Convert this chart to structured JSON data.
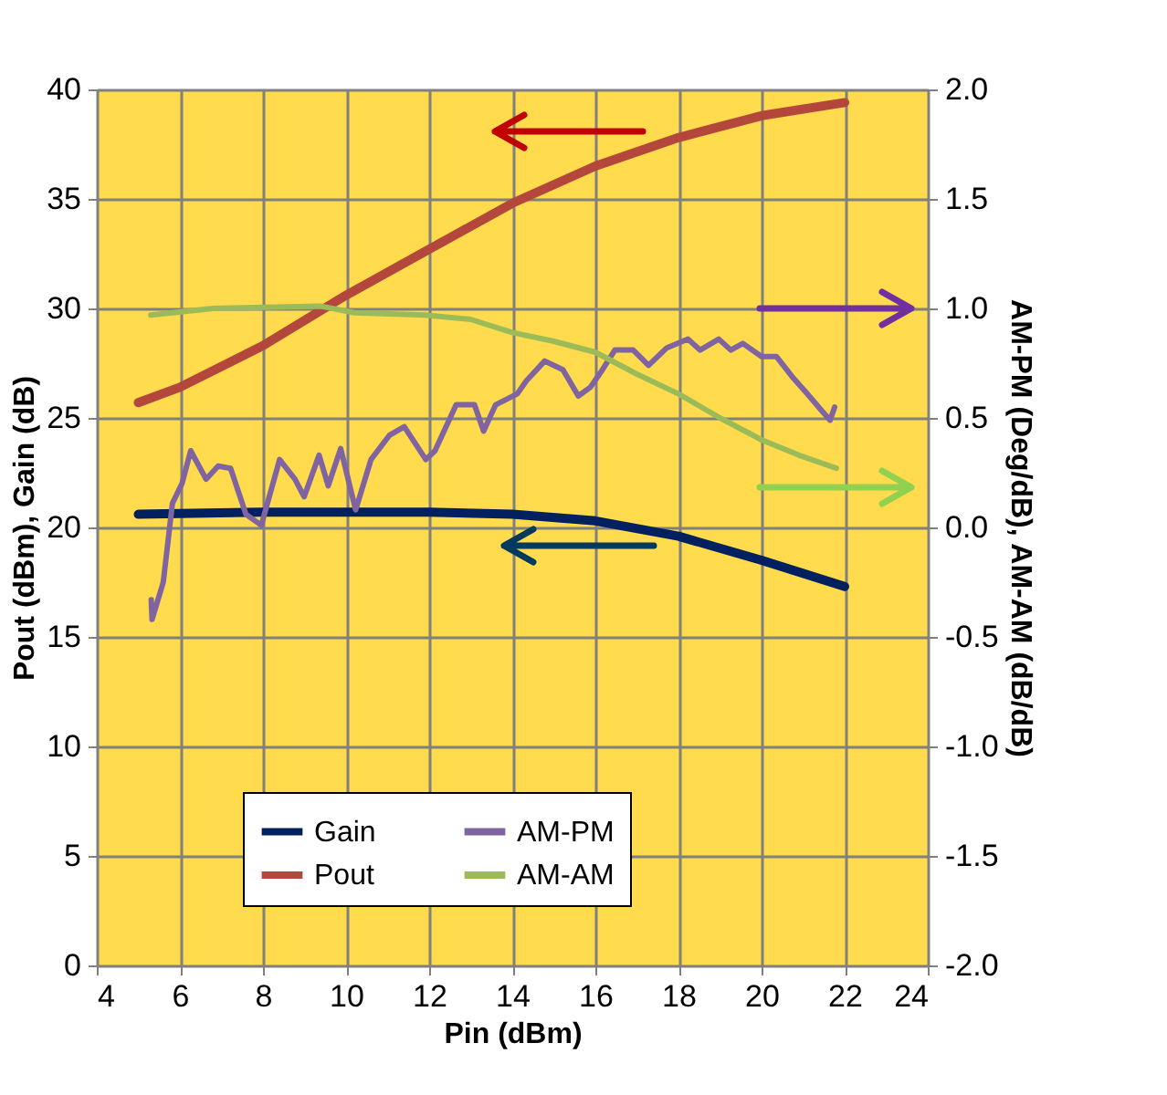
{
  "chart_data": {
    "type": "line",
    "xlabel": "Pin (dBm)",
    "ylabel": "Pout (dBm), Gain (dB)",
    "y2label": "AM-PM (Deg/dB), AM-AM (dB/dB)",
    "xlim": [
      4,
      24
    ],
    "xticks": [
      4,
      6,
      8,
      10,
      12,
      14,
      16,
      18,
      20,
      22,
      24
    ],
    "ylim": [
      0,
      40
    ],
    "yticks": [
      0,
      5,
      10,
      15,
      20,
      25,
      30,
      35,
      40
    ],
    "y2lim": [
      -2,
      2
    ],
    "y2ticks": [
      {
        "value": -2,
        "label": "-2.0"
      },
      {
        "value": -1.5,
        "label": "-1.5"
      },
      {
        "value": -1,
        "label": "-1.0"
      },
      {
        "value": -0.5,
        "label": "-0.5"
      },
      {
        "value": 0,
        "label": "0.0"
      },
      {
        "value": 0.5,
        "label": "0.5"
      },
      {
        "value": 1,
        "label": "1.0"
      },
      {
        "value": 1.5,
        "label": "1.5"
      },
      {
        "value": 2,
        "label": "2.0"
      }
    ],
    "grid": true,
    "legend": "bottom",
    "series": [
      {
        "name": "Gain",
        "color": "#002060",
        "x": [
          5,
          8,
          10,
          12,
          14,
          16,
          18,
          20,
          22
        ],
        "values": [
          20.6,
          20.7,
          20.7,
          20.7,
          20.6,
          20.3,
          19.6,
          18.5,
          17.3
        ]
      },
      {
        "name": "Pout",
        "color": "#b3473c",
        "x": [
          5,
          6,
          8,
          10,
          12,
          14,
          16,
          18,
          20,
          22
        ],
        "values": [
          25.7,
          26.4,
          28.3,
          30.6,
          32.7,
          34.8,
          36.5,
          37.8,
          38.8,
          39.4
        ]
      },
      {
        "name": "AM-PM",
        "color": "#8064a2",
        "axis": "y2",
        "x": [
          5.31,
          5.33,
          5.6,
          5.82,
          6.05,
          6.26,
          6.63,
          6.92,
          7.22,
          7.59,
          7.96,
          8.4,
          8.77,
          8.99,
          9.35,
          9.57,
          9.87,
          10.23,
          10.6,
          11.04,
          11.4,
          11.92,
          12.14,
          12.65,
          13.09,
          13.31,
          13.6,
          14.12,
          14.34,
          14.78,
          15.22,
          15.59,
          15.88,
          16.17,
          16.47,
          16.91,
          17.28,
          17.72,
          18.23,
          18.52,
          18.97,
          19.26,
          19.55,
          20.0,
          20.36,
          20.73,
          21.1,
          21.46,
          21.65,
          21.76
        ],
        "values": [
          -0.33,
          -0.42,
          -0.25,
          0.11,
          0.2,
          0.35,
          0.22,
          0.28,
          0.27,
          0.06,
          0.01,
          0.31,
          0.22,
          0.14,
          0.33,
          0.19,
          0.36,
          0.08,
          0.31,
          0.42,
          0.46,
          0.31,
          0.35,
          0.56,
          0.56,
          0.44,
          0.56,
          0.61,
          0.67,
          0.76,
          0.72,
          0.6,
          0.64,
          0.72,
          0.81,
          0.81,
          0.74,
          0.82,
          0.86,
          0.81,
          0.86,
          0.81,
          0.84,
          0.78,
          0.78,
          0.69,
          0.61,
          0.53,
          0.49,
          0.55
        ]
      },
      {
        "name": "AM-AM",
        "color": "#9bbb59",
        "axis": "y2",
        "x": [
          5.3,
          6.8,
          9.4,
          10.2,
          11.9,
          13,
          14,
          15,
          16,
          17,
          18,
          19,
          20,
          20.9,
          21.8
        ],
        "values": [
          0.97,
          1.0,
          1.01,
          0.98,
          0.97,
          0.95,
          0.89,
          0.85,
          0.8,
          0.7,
          0.61,
          0.5,
          0.4,
          0.33,
          0.27
        ]
      }
    ]
  }
}
